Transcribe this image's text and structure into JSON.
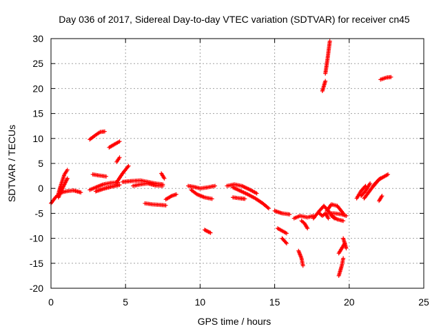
{
  "chart_data": {
    "type": "scatter",
    "title": "Day 036 of 2017, Sidereal Day-to-day VTEC variation (SDTVAR) for receiver cn45",
    "xlabel": "GPS time / hours",
    "ylabel": "SDTVAR / TECUs",
    "xlim": [
      0,
      25
    ],
    "ylim": [
      -20,
      30
    ],
    "x_ticks": [
      "0",
      "5",
      "10",
      "15",
      "20",
      "25"
    ],
    "y_ticks": [
      "-20",
      "-15",
      "-10",
      "-5",
      "0",
      "5",
      "10",
      "15",
      "20",
      "25",
      "30"
    ],
    "grid": true,
    "marker": "+",
    "color": "#ff0000",
    "segments": [
      {
        "x": [
          0.0,
          0.3,
          0.6,
          1.0,
          1.5,
          2.0
        ],
        "y": [
          -3.0,
          -1.8,
          -0.9,
          -0.6,
          -0.4,
          -0.8
        ]
      },
      {
        "x": [
          0.5,
          0.7,
          0.9,
          1.1
        ],
        "y": [
          -1.0,
          1.0,
          2.8,
          3.7
        ]
      },
      {
        "x": [
          0.5,
          0.8,
          1.1
        ],
        "y": [
          -1.8,
          0.2,
          2.0
        ]
      },
      {
        "x": [
          2.6,
          3.0,
          3.3,
          3.6
        ],
        "y": [
          9.8,
          10.7,
          11.3,
          11.4
        ]
      },
      {
        "x": [
          2.8,
          3.2,
          3.7
        ],
        "y": [
          2.8,
          2.6,
          2.4
        ]
      },
      {
        "x": [
          2.6,
          3.0,
          3.5,
          4.0,
          4.5
        ],
        "y": [
          -0.3,
          0.2,
          0.8,
          1.1,
          1.2
        ]
      },
      {
        "x": [
          3.0,
          3.5,
          4.0,
          4.6
        ],
        "y": [
          -0.6,
          -0.1,
          0.3,
          0.7
        ]
      },
      {
        "x": [
          3.9,
          4.3,
          4.6
        ],
        "y": [
          8.2,
          8.9,
          9.4
        ]
      },
      {
        "x": [
          4.4,
          4.6
        ],
        "y": [
          5.3,
          6.2
        ]
      },
      {
        "x": [
          4.4,
          4.8,
          5.2
        ],
        "y": [
          1.2,
          3.0,
          4.5
        ]
      },
      {
        "x": [
          4.8,
          5.5,
          6.0,
          6.5,
          7.0,
          7.5
        ],
        "y": [
          1.3,
          1.5,
          1.6,
          1.3,
          1.0,
          0.8
        ]
      },
      {
        "x": [
          5.5,
          6.0,
          6.5,
          7.0,
          7.5
        ],
        "y": [
          0.5,
          0.8,
          1.0,
          0.6,
          0.5
        ]
      },
      {
        "x": [
          6.3,
          6.8,
          7.3,
          7.7
        ],
        "y": [
          -3.0,
          -3.2,
          -3.3,
          -3.4
        ]
      },
      {
        "x": [
          7.4,
          7.6
        ],
        "y": [
          3.0,
          2.0
        ]
      },
      {
        "x": [
          7.7,
          8.1,
          8.4
        ],
        "y": [
          -2.2,
          -1.5,
          -1.2
        ]
      },
      {
        "x": [
          9.2,
          9.6,
          10.0,
          10.5,
          11.0
        ],
        "y": [
          0.5,
          0.3,
          0.0,
          0.2,
          0.5
        ]
      },
      {
        "x": [
          9.4,
          9.8,
          10.3,
          10.8
        ],
        "y": [
          -0.3,
          -1.2,
          -1.8,
          -2.1
        ]
      },
      {
        "x": [
          10.3,
          10.7
        ],
        "y": [
          -8.3,
          -8.9
        ]
      },
      {
        "x": [
          11.8,
          12.3,
          12.8,
          13.3,
          13.8
        ],
        "y": [
          0.5,
          0.8,
          0.5,
          -0.2,
          -1.0
        ]
      },
      {
        "x": [
          12.2,
          12.7,
          13.2,
          13.7,
          14.2,
          14.6
        ],
        "y": [
          0.2,
          -0.5,
          -1.2,
          -2.0,
          -3.0,
          -4.0
        ]
      },
      {
        "x": [
          12.2,
          12.7,
          13.0
        ],
        "y": [
          -1.8,
          -2.0,
          -2.1
        ]
      },
      {
        "x": [
          15.0,
          15.5,
          16.0
        ],
        "y": [
          -4.5,
          -5.0,
          -5.2
        ]
      },
      {
        "x": [
          15.2,
          15.5,
          15.8
        ],
        "y": [
          -8.0,
          -8.5,
          -9.0
        ]
      },
      {
        "x": [
          15.5,
          15.8
        ],
        "y": [
          -10.0,
          -11.0
        ]
      },
      {
        "x": [
          16.3,
          16.7,
          17.2,
          17.6
        ],
        "y": [
          -6.0,
          -5.5,
          -5.8,
          -5.5
        ]
      },
      {
        "x": [
          16.8,
          17.0,
          17.2
        ],
        "y": [
          -6.5,
          -7.0,
          -8.0
        ]
      },
      {
        "x": [
          16.6,
          16.8,
          16.9
        ],
        "y": [
          -12.5,
          -14.0,
          -15.5
        ]
      },
      {
        "x": [
          17.6,
          18.0,
          18.3,
          18.6,
          19.0
        ],
        "y": [
          -6.0,
          -4.5,
          -3.5,
          -4.5,
          -6.0
        ]
      },
      {
        "x": [
          18.5,
          18.8,
          19.2,
          19.6
        ],
        "y": [
          -4.5,
          -3.2,
          -3.5,
          -5.0
        ]
      },
      {
        "x": [
          18.5,
          19.0,
          19.5,
          19.8
        ],
        "y": [
          -5.0,
          -5.0,
          -5.2,
          -5.5
        ]
      },
      {
        "x": [
          18.8,
          19.2,
          19.6
        ],
        "y": [
          -5.5,
          -6.2,
          -6.5
        ]
      },
      {
        "x": [
          18.0,
          18.2,
          18.4,
          18.6
        ],
        "y": [
          -5.0,
          -5.5,
          -5.0,
          -6.0
        ]
      },
      {
        "x": [
          18.2,
          18.4
        ],
        "y": [
          19.5,
          21.5
        ]
      },
      {
        "x": [
          18.4,
          18.55,
          18.7
        ],
        "y": [
          23.0,
          26.0,
          29.5
        ]
      },
      {
        "x": [
          19.3,
          19.5,
          19.7
        ],
        "y": [
          -13.0,
          -12.0,
          -11.0
        ]
      },
      {
        "x": [
          19.3,
          19.5,
          19.6
        ],
        "y": [
          -17.5,
          -15.5,
          -14.0
        ]
      },
      {
        "x": [
          19.6,
          19.8
        ],
        "y": [
          -10.0,
          -12.0
        ]
      },
      {
        "x": [
          20.5,
          20.8,
          21.1
        ],
        "y": [
          -2.0,
          -0.5,
          0.5
        ]
      },
      {
        "x": [
          20.8,
          21.1,
          21.4
        ],
        "y": [
          -1.5,
          -0.5,
          1.0
        ]
      },
      {
        "x": [
          21.0,
          21.5,
          22.0,
          22.6
        ],
        "y": [
          -2.0,
          0.0,
          1.8,
          2.8
        ]
      },
      {
        "x": [
          21.6,
          21.9,
          22.1
        ],
        "y": [
          0.5,
          1.5,
          2.0
        ]
      },
      {
        "x": [
          22.0,
          22.2
        ],
        "y": [
          -2.5,
          -1.5
        ]
      },
      {
        "x": [
          22.1,
          22.5,
          22.8
        ],
        "y": [
          21.8,
          22.2,
          22.3
        ]
      }
    ]
  }
}
